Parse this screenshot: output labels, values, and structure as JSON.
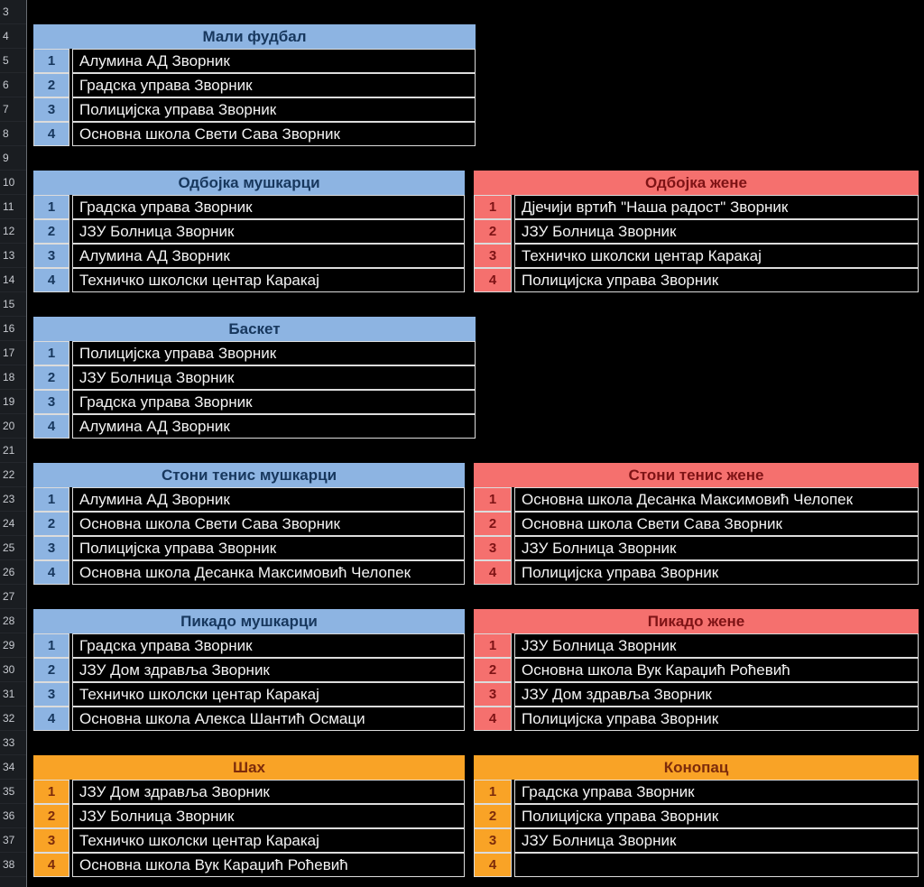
{
  "colors": {
    "background": "#000000",
    "header_blue": "#8DB4E2",
    "header_blue_text": "#17375D",
    "header_red": "#F5706E",
    "header_red_text": "#7E1315",
    "header_orange": "#F9A326",
    "header_orange_text": "#7C2B0B",
    "cell_bg": "#000000",
    "cell_text": "#F3F3F3",
    "cell_border": "#DCDCDC",
    "gutter_bg": "#1A1D21",
    "gutter_text": "#C7CAD0"
  },
  "gutter": {
    "rows": [
      "3",
      "4",
      "5",
      "6",
      "7",
      "8",
      "9",
      "10",
      "11",
      "12",
      "13",
      "14",
      "15",
      "16",
      "17",
      "18",
      "19",
      "20",
      "21",
      "22",
      "23",
      "24",
      "25",
      "26",
      "27",
      "28",
      "29",
      "30",
      "31",
      "32",
      "33",
      "34",
      "35",
      "36",
      "37",
      "38"
    ]
  },
  "tables": [
    {
      "title": "Мали фудбал",
      "theme": "blue",
      "rows": [
        {
          "num": "1",
          "team": "Алумина АД Зворник"
        },
        {
          "num": "2",
          "team": "Градска управа Зворник"
        },
        {
          "num": "3",
          "team": "Полицијска управа Зворник"
        },
        {
          "num": "4",
          "team": "Основна школа Свети Сава Зворник"
        }
      ]
    },
    {
      "title": "Одбојка мушкарци",
      "theme": "blue",
      "rows": [
        {
          "num": "1",
          "team": "Градска управа Зворник"
        },
        {
          "num": "2",
          "team": "ЈЗУ Болница Зворник"
        },
        {
          "num": "3",
          "team": "Алумина АД Зворник"
        },
        {
          "num": "4",
          "team": "Техничко школски центар Каракај"
        }
      ]
    },
    {
      "title": "Одбојка жене",
      "theme": "red",
      "rows": [
        {
          "num": "1",
          "team": "Дјечији вртић \"Наша радост\" Зворник"
        },
        {
          "num": "2",
          "team": "ЈЗУ Болница Зворник"
        },
        {
          "num": "3",
          "team": "Техничко школски центар Каракај"
        },
        {
          "num": "4",
          "team": "Полицијска управа Зворник"
        }
      ]
    },
    {
      "title": "Баскет",
      "theme": "blue",
      "rows": [
        {
          "num": "1",
          "team": "Полицијска управа Зворник"
        },
        {
          "num": "2",
          "team": "ЈЗУ Болница Зворник"
        },
        {
          "num": "3",
          "team": "Градска управа Зворник"
        },
        {
          "num": "4",
          "team": "Алумина АД Зворник"
        }
      ]
    },
    {
      "title": "Стони тенис мушкарци",
      "theme": "blue",
      "rows": [
        {
          "num": "1",
          "team": "Алумина АД Зворник"
        },
        {
          "num": "2",
          "team": "Основна школа Свети Сава Зворник"
        },
        {
          "num": "3",
          "team": "Полицијска управа Зворник"
        },
        {
          "num": "4",
          "team": "Основна школа Десанка Максимовић Челопек"
        }
      ]
    },
    {
      "title": "Стони тенис жене",
      "theme": "red",
      "rows": [
        {
          "num": "1",
          "team": "Основна школа Десанка Максимовић Челопек"
        },
        {
          "num": "2",
          "team": "Основна школа Свети Сава Зворник"
        },
        {
          "num": "3",
          "team": "ЈЗУ Болница Зворник"
        },
        {
          "num": "4",
          "team": "Полицијска управа Зворник"
        }
      ]
    },
    {
      "title": "Пикадо мушкарци",
      "theme": "blue",
      "rows": [
        {
          "num": "1",
          "team": "Градска управа Зворник"
        },
        {
          "num": "2",
          "team": "ЈЗУ Дом здравља Зворник"
        },
        {
          "num": "3",
          "team": "Техничко школски центар Каракај"
        },
        {
          "num": "4",
          "team": "Основна школа Алекса Шантић Осмаци"
        }
      ]
    },
    {
      "title": "Пикадо жене",
      "theme": "red",
      "rows": [
        {
          "num": "1",
          "team": "ЈЗУ Болница Зворник"
        },
        {
          "num": "2",
          "team": "Основна школа Вук Караџић Роћевић"
        },
        {
          "num": "3",
          "team": "ЈЗУ Дом здравља Зворник"
        },
        {
          "num": "4",
          "team": "Полицијска управа Зворник"
        }
      ]
    },
    {
      "title": "Шах",
      "theme": "orange",
      "rows": [
        {
          "num": "1",
          "team": "ЈЗУ Дом здравља Зворник"
        },
        {
          "num": "2",
          "team": "ЈЗУ Болница Зворник"
        },
        {
          "num": "3",
          "team": "Техничко школски центар Каракај"
        },
        {
          "num": "4",
          "team": "Основна школа Вук Караџић Роћевић"
        }
      ]
    },
    {
      "title": "Конопац",
      "theme": "orange",
      "rows": [
        {
          "num": "1",
          "team": "Градска управа Зворник"
        },
        {
          "num": "2",
          "team": "Полицијска управа Зворник"
        },
        {
          "num": "3",
          "team": "ЈЗУ Болница Зворник"
        },
        {
          "num": "4",
          "team": ""
        }
      ]
    }
  ]
}
